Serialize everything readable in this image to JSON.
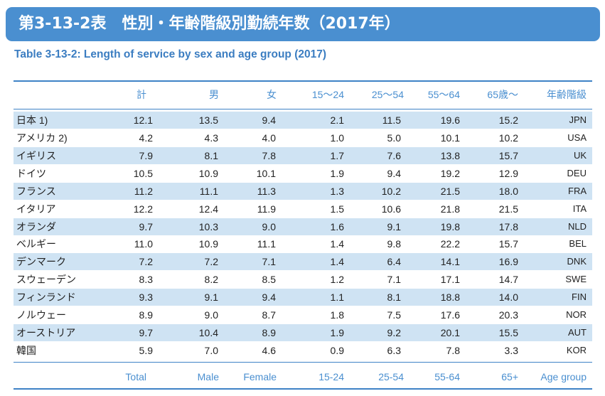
{
  "title": "第3-13-2表　性別・年齢階級別勤続年数（2017年）",
  "subtitle": "Table 3-13-2: Length of service by sex and age group (2017)",
  "header_ja": [
    "計",
    "男",
    "女",
    "15～24",
    "25～54",
    "55～64",
    "65歳～",
    "年齢階級"
  ],
  "header_en": [
    "Total",
    "Male",
    "Female",
    "15-24",
    "25-54",
    "55-64",
    "65+",
    "Age group"
  ],
  "rows": [
    {
      "name": "日本 1)",
      "values": [
        "12.1",
        "13.5",
        "9.4",
        "2.1",
        "11.5",
        "19.6",
        "15.2"
      ],
      "code": "JPN"
    },
    {
      "name": "アメリカ 2)",
      "values": [
        "4.2",
        "4.3",
        "4.0",
        "1.0",
        "5.0",
        "10.1",
        "10.2"
      ],
      "code": "USA"
    },
    {
      "name": "イギリス",
      "values": [
        "7.9",
        "8.1",
        "7.8",
        "1.7",
        "7.6",
        "13.8",
        "15.7"
      ],
      "code": "UK"
    },
    {
      "name": "ドイツ",
      "values": [
        "10.5",
        "10.9",
        "10.1",
        "1.9",
        "9.4",
        "19.2",
        "12.9"
      ],
      "code": "DEU"
    },
    {
      "name": "フランス",
      "values": [
        "11.2",
        "11.1",
        "11.3",
        "1.3",
        "10.2",
        "21.5",
        "18.0"
      ],
      "code": "FRA"
    },
    {
      "name": "イタリア",
      "values": [
        "12.2",
        "12.4",
        "11.9",
        "1.5",
        "10.6",
        "21.8",
        "21.5"
      ],
      "code": "ITA"
    },
    {
      "name": "オランダ",
      "values": [
        "9.7",
        "10.3",
        "9.0",
        "1.6",
        "9.1",
        "19.8",
        "17.8"
      ],
      "code": "NLD"
    },
    {
      "name": "ベルギー",
      "values": [
        "11.0",
        "10.9",
        "11.1",
        "1.4",
        "9.8",
        "22.2",
        "15.7"
      ],
      "code": "BEL"
    },
    {
      "name": "デンマーク",
      "values": [
        "7.2",
        "7.2",
        "7.1",
        "1.4",
        "6.4",
        "14.1",
        "16.9"
      ],
      "code": "DNK"
    },
    {
      "name": "スウェーデン",
      "values": [
        "8.3",
        "8.2",
        "8.5",
        "1.2",
        "7.1",
        "17.1",
        "14.7"
      ],
      "code": "SWE"
    },
    {
      "name": "フィンランド",
      "values": [
        "9.3",
        "9.1",
        "9.4",
        "1.1",
        "8.1",
        "18.8",
        "14.0"
      ],
      "code": "FIN"
    },
    {
      "name": "ノルウェー",
      "values": [
        "8.9",
        "9.0",
        "8.7",
        "1.8",
        "7.5",
        "17.6",
        "20.3"
      ],
      "code": "NOR"
    },
    {
      "name": "オーストリア",
      "values": [
        "9.7",
        "10.4",
        "8.9",
        "1.9",
        "9.2",
        "20.1",
        "15.5"
      ],
      "code": "AUT"
    },
    {
      "name": "韓国",
      "values": [
        "5.9",
        "7.0",
        "4.6",
        "0.9",
        "6.3",
        "7.8",
        "3.3"
      ],
      "code": "KOR"
    }
  ],
  "colors": {
    "accent": "#4a8fd0",
    "row_shade": "#cfe3f3",
    "rule": "#3e82c6"
  }
}
